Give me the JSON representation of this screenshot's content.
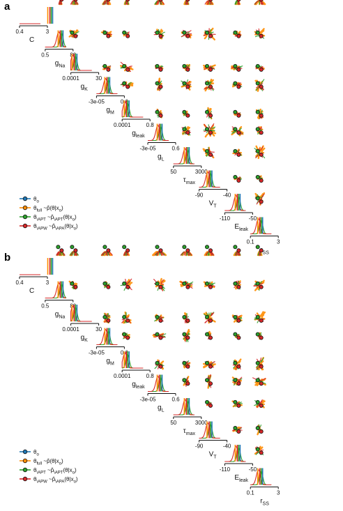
{
  "chart_data": [
    {
      "panel": "a",
      "type": "pairplot",
      "parameters": [
        {
          "name": "C",
          "base": "C",
          "sub": "",
          "tick_labels": [
            "0.4",
            "3"
          ]
        },
        {
          "name": "gNa",
          "base": "g",
          "sub": "Na",
          "tick_labels": [
            "0.5",
            "80"
          ]
        },
        {
          "name": "gK",
          "base": "g",
          "sub": "K",
          "tick_labels": [
            "0.0001",
            "30"
          ]
        },
        {
          "name": "gM",
          "base": "g",
          "sub": "M",
          "tick_labels": [
            "-3e-05",
            "0.6"
          ]
        },
        {
          "name": "gleak",
          "base": "g",
          "sub": "leak",
          "tick_labels": [
            "0.0001",
            "0.8"
          ]
        },
        {
          "name": "gL",
          "base": "g",
          "sub": "L",
          "tick_labels": [
            "-3e-05",
            "0.6"
          ]
        },
        {
          "name": "τmax",
          "base": "τ",
          "sub": "max",
          "tick_labels": [
            "50",
            "3000"
          ]
        },
        {
          "name": "VT",
          "base": "V",
          "sub": "T",
          "tick_labels": [
            "-90",
            "-40"
          ]
        },
        {
          "name": "Eleak",
          "base": "E",
          "sub": "leak",
          "tick_labels": [
            "-110",
            "-50"
          ]
        },
        {
          "name": "rSS",
          "base": "r",
          "sub": "SS",
          "tick_labels": [
            "0.1",
            "3"
          ]
        }
      ],
      "true_values": [
        1.45,
        0.72,
        0.16,
        0.5,
        0.2,
        0.55,
        0.62,
        0.48,
        0.6,
        0.45
      ],
      "legend": [
        {
          "base": "θ",
          "sub": "o",
          "rest": ""
        },
        {
          "base": "θ",
          "sub": "full",
          "rest": " ~p̂(θ|x",
          "rest_sub": "o",
          "tail": ")"
        },
        {
          "base": "θ",
          "sub": "\\APT",
          "rest": " ~p̂",
          "mid_sub": "\\APT",
          "rest2": "(θ|x",
          "rest_sub": "o",
          "tail": ")"
        },
        {
          "base": "θ",
          "sub": "\\APW",
          "rest": " ~p̂",
          "mid_sub": "\\APA",
          "rest2": "(θ|x",
          "rest_sub": "o",
          "tail": ")"
        }
      ]
    },
    {
      "panel": "b",
      "type": "pairplot",
      "parameters": [
        {
          "name": "C",
          "base": "C",
          "sub": "",
          "tick_labels": [
            "0.4",
            "3"
          ]
        },
        {
          "name": "gNa",
          "base": "g",
          "sub": "Na",
          "tick_labels": [
            "0.5",
            "80"
          ]
        },
        {
          "name": "gK",
          "base": "g",
          "sub": "K",
          "tick_labels": [
            "0.0001",
            "30"
          ]
        },
        {
          "name": "gM",
          "base": "g",
          "sub": "M",
          "tick_labels": [
            "-3e-05",
            "0.6"
          ]
        },
        {
          "name": "gleak",
          "base": "g",
          "sub": "leak",
          "tick_labels": [
            "0.0001",
            "0.8"
          ]
        },
        {
          "name": "gL",
          "base": "g",
          "sub": "L",
          "tick_labels": [
            "-3e-05",
            "0.6"
          ]
        },
        {
          "name": "τmax",
          "base": "τ",
          "sub": "max",
          "tick_labels": [
            "50",
            "3000"
          ]
        },
        {
          "name": "VT",
          "base": "V",
          "sub": "T",
          "tick_labels": [
            "-90",
            "-40"
          ]
        },
        {
          "name": "Eleak",
          "base": "E",
          "sub": "leak",
          "tick_labels": [
            "-110",
            "-50"
          ]
        },
        {
          "name": "rSS",
          "base": "r",
          "sub": "SS",
          "tick_labels": [
            "0.1",
            "3"
          ]
        }
      ],
      "true_values": [
        1.45,
        0.72,
        0.16,
        0.5,
        0.2,
        0.55,
        0.62,
        0.48,
        0.6,
        0.45
      ],
      "legend": [
        {
          "base": "θ",
          "sub": "o",
          "rest": ""
        },
        {
          "base": "θ",
          "sub": "full",
          "rest": " ~p̂(θ|x",
          "rest_sub": "o",
          "tail": ")"
        },
        {
          "base": "θ",
          "sub": "\\APT",
          "rest": " ~p̂",
          "mid_sub": "\\APT",
          "rest2": "(θ|x",
          "rest_sub": "o",
          "tail": ")"
        },
        {
          "base": "θ",
          "sub": "\\APW",
          "rest": " ~p̂",
          "mid_sub": "\\APA",
          "rest2": "(θ|x",
          "rest_sub": "o",
          "tail": ")"
        }
      ]
    }
  ],
  "colors": {
    "true": "#1f77b4",
    "full": "#ff8c00",
    "apt": "#2ca02c",
    "apw": "#d62728",
    "axis": "#111111"
  },
  "series": [
    "true",
    "full",
    "apt",
    "apw"
  ],
  "panel_labels": [
    "a",
    "b"
  ]
}
